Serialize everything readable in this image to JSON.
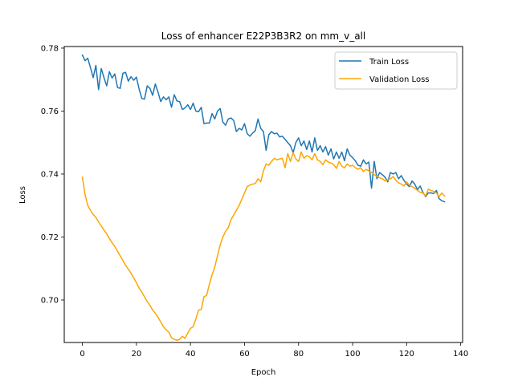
{
  "chart_data": {
    "type": "line",
    "title": "Loss of enhancer E22P3B3R2 on mm_v_all",
    "xlabel": "Epoch",
    "ylabel": "Loss",
    "xlim": [
      -6.7,
      140.7
    ],
    "ylim": [
      0.6865,
      0.7805
    ],
    "xticks": [
      0,
      20,
      40,
      60,
      80,
      100,
      120,
      140
    ],
    "yticks": [
      0.7,
      0.72,
      0.74,
      0.76,
      0.78
    ],
    "xtick_labels": [
      "0",
      "20",
      "40",
      "60",
      "80",
      "100",
      "120",
      "140"
    ],
    "ytick_labels": [
      "0.70",
      "0.72",
      "0.74",
      "0.76",
      "0.78"
    ],
    "grid": false,
    "legend_position": "top-right",
    "series": [
      {
        "name": "Train Loss",
        "color": "#1f77b4",
        "anchors": [
          [
            0,
            0.7778
          ],
          [
            1,
            0.776
          ],
          [
            2,
            0.7768
          ],
          [
            3,
            0.7738
          ],
          [
            4,
            0.7706
          ],
          [
            5,
            0.7745
          ],
          [
            6,
            0.7668
          ],
          [
            7,
            0.7735
          ],
          [
            8,
            0.7706
          ],
          [
            9,
            0.768
          ],
          [
            10,
            0.7725
          ],
          [
            11,
            0.7705
          ],
          [
            12,
            0.7718
          ],
          [
            13,
            0.7675
          ],
          [
            14,
            0.7672
          ],
          [
            15,
            0.772
          ],
          [
            16,
            0.7723
          ],
          [
            17,
            0.7695
          ],
          [
            18,
            0.7709
          ],
          [
            19,
            0.7698
          ],
          [
            20,
            0.7708
          ],
          [
            21,
            0.767
          ],
          [
            22,
            0.764
          ],
          [
            23,
            0.7638
          ],
          [
            24,
            0.768
          ],
          [
            25,
            0.7672
          ],
          [
            26,
            0.765
          ],
          [
            27,
            0.7686
          ],
          [
            28,
            0.766
          ],
          [
            29,
            0.763
          ],
          [
            30,
            0.7645
          ],
          [
            31,
            0.7636
          ],
          [
            32,
            0.7645
          ],
          [
            33,
            0.7612
          ],
          [
            34,
            0.7652
          ],
          [
            35,
            0.7632
          ],
          [
            36,
            0.763
          ],
          [
            37,
            0.7605
          ],
          [
            38,
            0.761
          ],
          [
            39,
            0.762
          ],
          [
            40,
            0.7605
          ],
          [
            41,
            0.7625
          ],
          [
            42,
            0.76
          ],
          [
            43,
            0.7598
          ],
          [
            44,
            0.7612
          ],
          [
            45,
            0.756
          ],
          [
            46,
            0.7562
          ],
          [
            47,
            0.7562
          ],
          [
            48,
            0.7592
          ],
          [
            49,
            0.7575
          ],
          [
            50,
            0.76
          ],
          [
            51,
            0.7608
          ],
          [
            52,
            0.7565
          ],
          [
            53,
            0.7555
          ],
          [
            54,
            0.7575
          ],
          [
            55,
            0.7578
          ],
          [
            56,
            0.757
          ],
          [
            57,
            0.7535
          ],
          [
            58,
            0.7545
          ],
          [
            59,
            0.754
          ],
          [
            60,
            0.756
          ],
          [
            61,
            0.7528
          ],
          [
            62,
            0.752
          ],
          [
            63,
            0.753
          ],
          [
            64,
            0.7538
          ],
          [
            65,
            0.7575
          ],
          [
            66,
            0.7545
          ],
          [
            67,
            0.7535
          ],
          [
            68,
            0.7475
          ],
          [
            69,
            0.7525
          ],
          [
            70,
            0.7535
          ],
          [
            71,
            0.7528
          ],
          [
            72,
            0.753
          ],
          [
            73,
            0.7518
          ],
          [
            74,
            0.752
          ],
          [
            75,
            0.751
          ],
          [
            76,
            0.75
          ],
          [
            77,
            0.749
          ],
          [
            78,
            0.7468
          ],
          [
            79,
            0.75
          ],
          [
            80,
            0.7515
          ],
          [
            81,
            0.749
          ],
          [
            82,
            0.7505
          ],
          [
            83,
            0.7478
          ],
          [
            84,
            0.7505
          ],
          [
            85,
            0.747
          ],
          [
            86,
            0.7515
          ],
          [
            87,
            0.7475
          ],
          [
            88,
            0.749
          ],
          [
            89,
            0.747
          ],
          [
            90,
            0.7487
          ],
          [
            91,
            0.746
          ],
          [
            92,
            0.748
          ],
          [
            93,
            0.7448
          ],
          [
            94,
            0.747
          ],
          [
            95,
            0.745
          ],
          [
            96,
            0.747
          ],
          [
            97,
            0.7442
          ],
          [
            98,
            0.748
          ],
          [
            99,
            0.746
          ],
          [
            100,
            0.7452
          ],
          [
            101,
            0.7442
          ],
          [
            102,
            0.7428
          ],
          [
            103,
            0.7425
          ],
          [
            104,
            0.7445
          ],
          [
            105,
            0.7432
          ],
          [
            106,
            0.7438
          ],
          [
            107,
            0.7355
          ],
          [
            108,
            0.744
          ],
          [
            109,
            0.7385
          ],
          [
            110,
            0.7405
          ],
          [
            111,
            0.7398
          ],
          [
            112,
            0.739
          ],
          [
            113,
            0.7375
          ],
          [
            114,
            0.7405
          ],
          [
            115,
            0.74
          ],
          [
            116,
            0.7405
          ],
          [
            117,
            0.7385
          ],
          [
            118,
            0.7395
          ],
          [
            119,
            0.738
          ],
          [
            120,
            0.7368
          ],
          [
            121,
            0.736
          ],
          [
            122,
            0.7378
          ],
          [
            123,
            0.7368
          ],
          [
            124,
            0.735
          ],
          [
            125,
            0.7362
          ],
          [
            126,
            0.7342
          ],
          [
            127,
            0.7328
          ],
          [
            128,
            0.734
          ],
          [
            129,
            0.734
          ],
          [
            130,
            0.7338
          ],
          [
            131,
            0.7348
          ],
          [
            132,
            0.7322
          ],
          [
            133,
            0.7315
          ],
          [
            134,
            0.7312
          ]
        ]
      },
      {
        "name": "Validation Loss",
        "color": "#ffa500",
        "anchors": [
          [
            0,
            0.739
          ],
          [
            1,
            0.7335
          ],
          [
            2,
            0.73
          ],
          [
            3,
            0.7285
          ],
          [
            4,
            0.7272
          ],
          [
            5,
            0.7262
          ],
          [
            6,
            0.7248
          ],
          [
            7,
            0.7235
          ],
          [
            8,
            0.7222
          ],
          [
            9,
            0.721
          ],
          [
            10,
            0.7195
          ],
          [
            11,
            0.7182
          ],
          [
            12,
            0.717
          ],
          [
            13,
            0.7155
          ],
          [
            14,
            0.714
          ],
          [
            15,
            0.7125
          ],
          [
            16,
            0.711
          ],
          [
            17,
            0.7098
          ],
          [
            18,
            0.7085
          ],
          [
            19,
            0.707
          ],
          [
            20,
            0.7055
          ],
          [
            21,
            0.7038
          ],
          [
            22,
            0.7025
          ],
          [
            23,
            0.701
          ],
          [
            24,
            0.6995
          ],
          [
            25,
            0.6983
          ],
          [
            26,
            0.6968
          ],
          [
            27,
            0.6958
          ],
          [
            28,
            0.6945
          ],
          [
            29,
            0.693
          ],
          [
            30,
            0.6915
          ],
          [
            31,
            0.6905
          ],
          [
            32,
            0.6898
          ],
          [
            33,
            0.688
          ],
          [
            34,
            0.6875
          ],
          [
            35,
            0.6872
          ],
          [
            36,
            0.6875
          ],
          [
            37,
            0.6885
          ],
          [
            38,
            0.6878
          ],
          [
            39,
            0.6895
          ],
          [
            40,
            0.691
          ],
          [
            41,
            0.6915
          ],
          [
            42,
            0.694
          ],
          [
            43,
            0.6968
          ],
          [
            44,
            0.697
          ],
          [
            45,
            0.701
          ],
          [
            46,
            0.7015
          ],
          [
            47,
            0.705
          ],
          [
            48,
            0.708
          ],
          [
            49,
            0.7105
          ],
          [
            50,
            0.714
          ],
          [
            51,
            0.7175
          ],
          [
            52,
            0.72
          ],
          [
            53,
            0.7218
          ],
          [
            54,
            0.723
          ],
          [
            55,
            0.7255
          ],
          [
            56,
            0.727
          ],
          [
            57,
            0.7285
          ],
          [
            58,
            0.73
          ],
          [
            59,
            0.732
          ],
          [
            60,
            0.734
          ],
          [
            61,
            0.736
          ],
          [
            62,
            0.7365
          ],
          [
            63,
            0.7368
          ],
          [
            64,
            0.737
          ],
          [
            65,
            0.7385
          ],
          [
            66,
            0.7375
          ],
          [
            67,
            0.741
          ],
          [
            68,
            0.7432
          ],
          [
            69,
            0.7428
          ],
          [
            70,
            0.744
          ],
          [
            71,
            0.745
          ],
          [
            72,
            0.7445
          ],
          [
            73,
            0.7448
          ],
          [
            74,
            0.745
          ],
          [
            75,
            0.742
          ],
          [
            76,
            0.7465
          ],
          [
            77,
            0.744
          ],
          [
            78,
            0.7468
          ],
          [
            79,
            0.7448
          ],
          [
            80,
            0.744
          ],
          [
            81,
            0.747
          ],
          [
            82,
            0.745
          ],
          [
            83,
            0.7458
          ],
          [
            84,
            0.7455
          ],
          [
            85,
            0.7445
          ],
          [
            86,
            0.7465
          ],
          [
            87,
            0.7445
          ],
          [
            88,
            0.744
          ],
          [
            89,
            0.743
          ],
          [
            90,
            0.7445
          ],
          [
            91,
            0.7438
          ],
          [
            92,
            0.7435
          ],
          [
            93,
            0.743
          ],
          [
            94,
            0.7418
          ],
          [
            95,
            0.744
          ],
          [
            96,
            0.7425
          ],
          [
            97,
            0.742
          ],
          [
            98,
            0.7432
          ],
          [
            99,
            0.7425
          ],
          [
            100,
            0.7428
          ],
          [
            101,
            0.742
          ],
          [
            102,
            0.7415
          ],
          [
            103,
            0.742
          ],
          [
            104,
            0.7408
          ],
          [
            105,
            0.7415
          ],
          [
            106,
            0.741
          ],
          [
            107,
            0.7405
          ],
          [
            108,
            0.7398
          ],
          [
            109,
            0.7392
          ],
          [
            110,
            0.7388
          ],
          [
            111,
            0.7385
          ],
          [
            112,
            0.7378
          ],
          [
            113,
            0.7382
          ],
          [
            114,
            0.7385
          ],
          [
            115,
            0.7392
          ],
          [
            116,
            0.738
          ],
          [
            117,
            0.7372
          ],
          [
            118,
            0.7368
          ],
          [
            119,
            0.7362
          ],
          [
            120,
            0.7375
          ],
          [
            121,
            0.7365
          ],
          [
            122,
            0.736
          ],
          [
            123,
            0.7355
          ],
          [
            124,
            0.7348
          ],
          [
            125,
            0.7342
          ],
          [
            126,
            0.734
          ],
          [
            127,
            0.733
          ],
          [
            128,
            0.7352
          ],
          [
            129,
            0.7348
          ],
          [
            130,
            0.7345
          ],
          [
            131,
            0.734
          ],
          [
            132,
            0.7328
          ],
          [
            133,
            0.734
          ],
          [
            134,
            0.733
          ]
        ]
      }
    ]
  }
}
